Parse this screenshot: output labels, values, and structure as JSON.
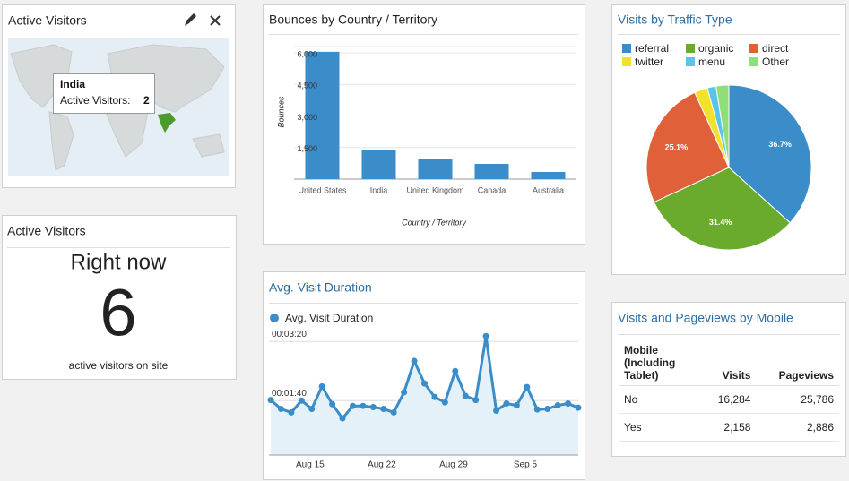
{
  "map_widget": {
    "title": "Active Visitors",
    "tooltip": {
      "country": "India",
      "label": "Active Visitors:",
      "value": 2
    }
  },
  "active_visitors": {
    "title": "Active Visitors",
    "subtitle": "Right now",
    "count": 6,
    "caption": "active visitors on site"
  },
  "chart_data": [
    {
      "type": "bar",
      "title": "Bounces by Country / Territory",
      "x_label": "Country / Territory",
      "y_label": "Bounces",
      "categories": [
        "United States",
        "India",
        "United Kingdom",
        "Canada",
        "Australia"
      ],
      "values": [
        6050,
        1405,
        936,
        724,
        340
      ],
      "color": "#3a8dc9",
      "ylim": [
        0,
        6300
      ],
      "yticks": [
        {
          "value": 1500,
          "label": "1,500"
        },
        {
          "value": 3000,
          "label": "3,000"
        },
        {
          "value": 4500,
          "label": "4,500"
        },
        {
          "value": 6000,
          "label": "6,000"
        }
      ],
      "grid": true
    },
    {
      "type": "line",
      "title": "Avg. Visit Duration",
      "categories": [
        null,
        null,
        "Aug 15",
        null,
        null,
        null,
        null,
        null,
        null,
        "Aug 22",
        null,
        null,
        null,
        null,
        null,
        null,
        "Aug 29",
        null,
        null,
        null,
        null,
        null,
        null,
        "Sep 5",
        null,
        null,
        null,
        null,
        null,
        null,
        null
      ],
      "series": [
        {
          "name": "Avg. Visit Duration",
          "color": "#3a8dc9",
          "values": [
            101,
            86,
            80,
            100,
            86,
            124,
            94,
            70,
            91,
            91,
            89,
            86,
            80,
            114,
            167,
            129,
            106,
            97,
            150,
            108,
            101,
            209,
            83,
            95,
            92,
            123,
            85,
            86,
            92,
            95,
            88
          ]
        }
      ],
      "ylim": [
        8,
        217
      ],
      "yticks": [
        {
          "value": 100,
          "label": "00:01:40"
        },
        {
          "value": 200,
          "label": "00:03:20"
        }
      ],
      "grid": true
    },
    {
      "type": "pie",
      "title": "Visits by Traffic Type",
      "categories": [
        "referral",
        "organic",
        "direct",
        "twitter",
        "menu",
        "Other"
      ],
      "values": [
        36.7,
        31.4,
        25.1,
        2.6,
        1.7,
        2.5
      ],
      "value_labels": [
        "36.7%",
        "31.4%",
        "25.1%",
        null,
        null,
        null
      ],
      "colors": [
        "#3a8dc9",
        "#6aab2e",
        "#e0603a",
        "#f2e229",
        "#5bc4e6",
        "#8ede7a"
      ]
    }
  ],
  "mobile_table": {
    "title": "Visits and Pageviews by Mobile",
    "columns": [
      "Mobile (Including Tablet)",
      "Visits",
      "Pageviews"
    ],
    "rows": [
      [
        "No",
        "16,284",
        "25,786"
      ],
      [
        "Yes",
        "2,158",
        "2,886"
      ]
    ]
  }
}
